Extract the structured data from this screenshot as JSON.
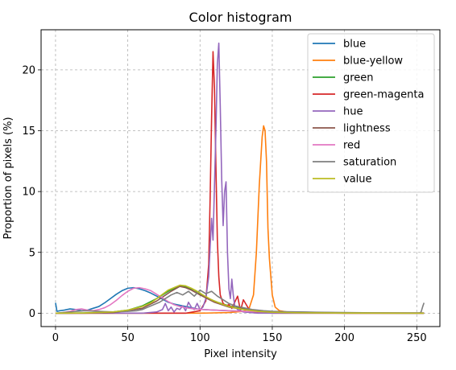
{
  "chart_data": {
    "type": "line",
    "title": "Color histogram",
    "xlabel": "Pixel intensity",
    "ylabel": "Proportion of pixels (%)",
    "xlim": [
      -10,
      266
    ],
    "ylim": [
      -1.1,
      23.3
    ],
    "xticks": [
      0,
      50,
      100,
      150,
      200,
      250
    ],
    "yticks": [
      0,
      5,
      10,
      15,
      20
    ],
    "grid": true,
    "legend_position": "top-right",
    "series": [
      {
        "name": "blue",
        "color": "#1f77b4",
        "x": [
          0,
          1,
          3,
          6,
          10,
          14,
          18,
          22,
          26,
          30,
          34,
          38,
          42,
          46,
          50,
          54,
          58,
          62,
          66,
          70,
          74,
          78,
          82,
          86,
          90,
          94,
          98,
          102,
          110,
          120,
          130,
          140,
          150,
          160,
          180,
          200,
          230,
          255
        ],
        "y": [
          0.85,
          0.15,
          0.2,
          0.25,
          0.35,
          0.3,
          0.2,
          0.25,
          0.4,
          0.55,
          0.85,
          1.2,
          1.55,
          1.85,
          2.05,
          2.1,
          2.0,
          1.85,
          1.65,
          1.4,
          1.15,
          0.9,
          0.75,
          0.65,
          0.55,
          0.45,
          0.35,
          0.3,
          0.25,
          0.2,
          0.15,
          0.12,
          0.1,
          0.08,
          0.05,
          0.03,
          0.02,
          0.02
        ]
      },
      {
        "name": "blue-yellow",
        "color": "#ff7f0e",
        "x": [
          0,
          100,
          120,
          130,
          134,
          137,
          139,
          141,
          143,
          144,
          145,
          146,
          147,
          148,
          150,
          152,
          155,
          160,
          200,
          255
        ],
        "y": [
          0.0,
          0.0,
          0.05,
          0.15,
          0.4,
          1.5,
          5.0,
          10.5,
          14.5,
          15.4,
          15.0,
          12.5,
          7.0,
          4.5,
          1.5,
          0.5,
          0.2,
          0.1,
          0.0,
          0.0
        ]
      },
      {
        "name": "green",
        "color": "#2ca02c",
        "x": [
          0,
          10,
          20,
          30,
          40,
          50,
          60,
          70,
          78,
          84,
          88,
          92,
          96,
          100,
          106,
          112,
          120,
          130,
          140,
          150,
          170,
          200,
          255
        ],
        "y": [
          0.0,
          0.0,
          0.02,
          0.05,
          0.1,
          0.25,
          0.6,
          1.2,
          1.8,
          2.15,
          2.25,
          2.1,
          1.9,
          1.6,
          1.2,
          0.9,
          0.6,
          0.35,
          0.2,
          0.1,
          0.05,
          0.02,
          0.0
        ]
      },
      {
        "name": "green-magenta",
        "color": "#d62728",
        "x": [
          0,
          90,
          100,
          104,
          106,
          107,
          108,
          109,
          110,
          111,
          112,
          113,
          114,
          116,
          118,
          120,
          122,
          124,
          126,
          128,
          130,
          135,
          150,
          255
        ],
        "y": [
          0.0,
          0.0,
          0.2,
          1.0,
          4.0,
          9.5,
          16.0,
          21.5,
          18.5,
          12.0,
          6.0,
          3.0,
          1.5,
          0.8,
          0.6,
          0.7,
          0.4,
          0.9,
          1.4,
          0.2,
          1.1,
          0.1,
          0.0,
          0.0
        ]
      },
      {
        "name": "hue",
        "color": "#9467bd",
        "x": [
          0,
          60,
          70,
          74,
          76,
          78,
          80,
          82,
          84,
          86,
          88,
          90,
          92,
          94,
          96,
          98,
          100,
          102,
          104,
          106,
          107,
          108,
          109,
          110,
          111,
          112,
          113,
          114,
          115,
          116,
          117,
          118,
          119,
          120,
          121,
          122,
          123,
          124,
          126,
          128,
          130,
          135,
          140,
          150,
          255
        ],
        "y": [
          0.0,
          0.0,
          0.1,
          0.3,
          0.8,
          0.2,
          0.5,
          0.1,
          0.4,
          0.3,
          0.6,
          0.2,
          0.9,
          0.5,
          0.3,
          0.8,
          0.3,
          0.5,
          1.2,
          3.0,
          5.5,
          7.8,
          6.0,
          10.5,
          15.0,
          20.5,
          22.2,
          17.0,
          11.0,
          7.2,
          10.0,
          10.8,
          5.0,
          2.0,
          1.2,
          2.8,
          1.5,
          0.6,
          0.3,
          0.2,
          0.1,
          0.05,
          0.0,
          0.0,
          0.0
        ]
      },
      {
        "name": "lightness",
        "color": "#8c564b",
        "x": [
          0,
          20,
          40,
          60,
          70,
          80,
          86,
          90,
          94,
          100,
          110,
          120,
          140,
          160,
          200,
          255
        ],
        "y": [
          0.0,
          0.0,
          0.05,
          0.4,
          1.0,
          1.8,
          2.2,
          2.1,
          1.9,
          1.5,
          0.9,
          0.5,
          0.15,
          0.05,
          0.0,
          0.0
        ]
      },
      {
        "name": "red",
        "color": "#e377c2",
        "x": [
          0,
          5,
          10,
          14,
          18,
          22,
          26,
          30,
          34,
          38,
          42,
          46,
          50,
          54,
          58,
          62,
          66,
          70,
          74,
          78,
          82,
          86,
          90,
          96,
          102,
          110,
          120,
          130,
          140,
          150,
          160,
          180,
          200,
          255
        ],
        "y": [
          0.0,
          0.05,
          0.15,
          0.3,
          0.35,
          0.25,
          0.2,
          0.3,
          0.45,
          0.7,
          1.05,
          1.45,
          1.8,
          2.05,
          2.1,
          2.0,
          1.85,
          1.55,
          1.25,
          0.95,
          0.7,
          0.55,
          0.45,
          0.35,
          0.3,
          0.25,
          0.2,
          0.15,
          0.12,
          0.1,
          0.08,
          0.05,
          0.03,
          0.02
        ]
      },
      {
        "name": "saturation",
        "color": "#7f7f7f",
        "x": [
          0,
          10,
          20,
          30,
          40,
          50,
          56,
          60,
          64,
          68,
          72,
          76,
          80,
          84,
          88,
          92,
          96,
          100,
          104,
          108,
          112,
          116,
          120,
          124,
          128,
          132,
          136,
          140,
          144,
          150,
          160,
          180,
          200,
          220,
          240,
          250,
          252,
          253,
          254,
          255
        ],
        "y": [
          0.0,
          0.1,
          0.2,
          0.15,
          0.1,
          0.15,
          0.2,
          0.3,
          0.5,
          0.7,
          0.9,
          1.2,
          1.5,
          1.7,
          1.5,
          1.8,
          1.4,
          1.9,
          1.6,
          1.8,
          1.4,
          1.1,
          0.8,
          0.6,
          0.5,
          0.4,
          0.3,
          0.25,
          0.2,
          0.15,
          0.12,
          0.08,
          0.05,
          0.03,
          0.02,
          0.02,
          0.03,
          0.1,
          0.5,
          0.85
        ]
      },
      {
        "name": "value",
        "color": "#bcbd22",
        "x": [
          0,
          20,
          40,
          50,
          60,
          66,
          70,
          74,
          78,
          82,
          86,
          90,
          94,
          98,
          102,
          108,
          114,
          120,
          130,
          140,
          150,
          170,
          200,
          255
        ],
        "y": [
          0.0,
          0.02,
          0.1,
          0.25,
          0.55,
          0.85,
          1.2,
          1.55,
          1.9,
          2.1,
          2.3,
          2.25,
          2.05,
          1.8,
          1.5,
          1.1,
          0.8,
          0.55,
          0.3,
          0.15,
          0.08,
          0.03,
          0.01,
          0.0
        ]
      }
    ]
  }
}
